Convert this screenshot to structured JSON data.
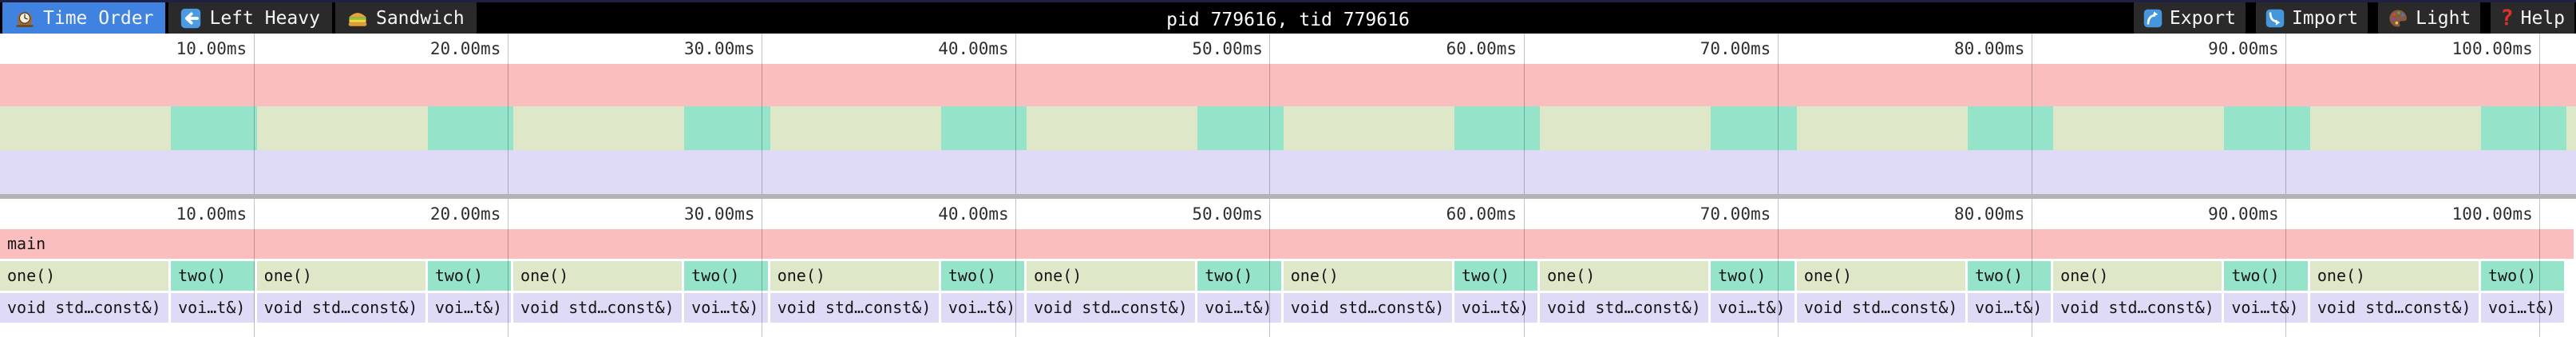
{
  "header": {
    "tabs": [
      {
        "label": "Time Order",
        "icon": "clock-icon",
        "active": true
      },
      {
        "label": "Left Heavy",
        "icon": "left-arrow-icon",
        "active": false
      },
      {
        "label": "Sandwich",
        "icon": "sandwich-icon",
        "active": false
      }
    ],
    "title": "pid 779616, tid 779616",
    "actions": [
      {
        "label": "Export",
        "icon": "export-icon"
      },
      {
        "label": "Import",
        "icon": "import-icon"
      },
      {
        "label": "Light",
        "icon": "palette-icon"
      },
      {
        "label": "Help",
        "icon": "help-icon"
      }
    ]
  },
  "colors": {
    "accent_blue": "#3f82e0",
    "topbar_bg": "#000000",
    "topbar_border": "#202045",
    "tab_bg": "#2a2a2a",
    "main_pink": "#fbbebe",
    "one_green": "#dee8c9",
    "two_teal": "#95e3c8",
    "lib_lavender": "#dfdbf7",
    "gridline": "rgba(0,0,0,0.24)",
    "minimap_border": "#b3b3b3"
  },
  "chart_data": {
    "type": "flamegraph",
    "time_unit": "ms",
    "viewport_ms": [
      0,
      101.42
    ],
    "ticks": [
      {
        "t": 10,
        "label": "10.00ms"
      },
      {
        "t": 20,
        "label": "20.00ms"
      },
      {
        "t": 30,
        "label": "30.00ms"
      },
      {
        "t": 40,
        "label": "40.00ms"
      },
      {
        "t": 50,
        "label": "50.00ms"
      },
      {
        "t": 60,
        "label": "60.00ms"
      },
      {
        "t": 70,
        "label": "70.00ms"
      },
      {
        "t": 80,
        "label": "80.00ms"
      },
      {
        "t": 90,
        "label": "90.00ms"
      },
      {
        "t": 100,
        "label": "100.00ms"
      }
    ],
    "rows": [
      {
        "name": "depth-0",
        "frames": [
          {
            "label": "main",
            "s": 0,
            "e": 101.42,
            "color": "#fbbebe"
          }
        ]
      },
      {
        "name": "depth-1",
        "frames": [
          {
            "label": "one()",
            "s": 0,
            "e": 6.73,
            "color": "#dee8c9"
          },
          {
            "label": "two()",
            "s": 6.73,
            "e": 10.11,
            "color": "#95e3c8"
          },
          {
            "label": "one()",
            "s": 10.11,
            "e": 16.84,
            "color": "#dee8c9"
          },
          {
            "label": "two()",
            "s": 16.84,
            "e": 20.21,
            "color": "#95e3c8"
          },
          {
            "label": "one()",
            "s": 20.21,
            "e": 26.94,
            "color": "#dee8c9"
          },
          {
            "label": "two()",
            "s": 26.94,
            "e": 30.32,
            "color": "#95e3c8"
          },
          {
            "label": "one()",
            "s": 30.32,
            "e": 37.05,
            "color": "#dee8c9"
          },
          {
            "label": "two()",
            "s": 37.05,
            "e": 40.42,
            "color": "#95e3c8"
          },
          {
            "label": "one()",
            "s": 40.42,
            "e": 47.15,
            "color": "#dee8c9"
          },
          {
            "label": "two()",
            "s": 47.15,
            "e": 50.53,
            "color": "#95e3c8"
          },
          {
            "label": "one()",
            "s": 50.53,
            "e": 57.26,
            "color": "#dee8c9"
          },
          {
            "label": "two()",
            "s": 57.26,
            "e": 60.63,
            "color": "#95e3c8"
          },
          {
            "label": "one()",
            "s": 60.63,
            "e": 67.36,
            "color": "#dee8c9"
          },
          {
            "label": "two()",
            "s": 67.36,
            "e": 70.74,
            "color": "#95e3c8"
          },
          {
            "label": "one()",
            "s": 70.74,
            "e": 77.47,
            "color": "#dee8c9"
          },
          {
            "label": "two()",
            "s": 77.47,
            "e": 80.84,
            "color": "#95e3c8"
          },
          {
            "label": "one()",
            "s": 80.84,
            "e": 87.57,
            "color": "#dee8c9"
          },
          {
            "label": "two()",
            "s": 87.57,
            "e": 90.95,
            "color": "#95e3c8"
          },
          {
            "label": "one()",
            "s": 90.95,
            "e": 97.68,
            "color": "#dee8c9"
          },
          {
            "label": "two()",
            "s": 97.68,
            "e": 101.05,
            "color": "#95e3c8"
          }
        ]
      },
      {
        "name": "depth-2",
        "frames": [
          {
            "label": "void std…const&)",
            "s": 0,
            "e": 6.73,
            "color": "#dfdbf7"
          },
          {
            "label": "voi…t&)",
            "s": 6.73,
            "e": 10.11,
            "color": "#dfdbf7"
          },
          {
            "label": "void std…const&)",
            "s": 10.11,
            "e": 16.84,
            "color": "#dfdbf7"
          },
          {
            "label": "voi…t&)",
            "s": 16.84,
            "e": 20.21,
            "color": "#dfdbf7"
          },
          {
            "label": "void std…const&)",
            "s": 20.21,
            "e": 26.94,
            "color": "#dfdbf7"
          },
          {
            "label": "voi…t&)",
            "s": 26.94,
            "e": 30.32,
            "color": "#dfdbf7"
          },
          {
            "label": "void std…const&)",
            "s": 30.32,
            "e": 37.05,
            "color": "#dfdbf7"
          },
          {
            "label": "voi…t&)",
            "s": 37.05,
            "e": 40.42,
            "color": "#dfdbf7"
          },
          {
            "label": "void std…const&)",
            "s": 40.42,
            "e": 47.15,
            "color": "#dfdbf7"
          },
          {
            "label": "voi…t&)",
            "s": 47.15,
            "e": 50.53,
            "color": "#dfdbf7"
          },
          {
            "label": "void std…const&)",
            "s": 50.53,
            "e": 57.26,
            "color": "#dfdbf7"
          },
          {
            "label": "voi…t&)",
            "s": 57.26,
            "e": 60.63,
            "color": "#dfdbf7"
          },
          {
            "label": "void std…const&)",
            "s": 60.63,
            "e": 67.36,
            "color": "#dfdbf7"
          },
          {
            "label": "voi…t&)",
            "s": 67.36,
            "e": 70.74,
            "color": "#dfdbf7"
          },
          {
            "label": "void std…const&)",
            "s": 70.74,
            "e": 77.47,
            "color": "#dfdbf7"
          },
          {
            "label": "voi…t&)",
            "s": 77.47,
            "e": 80.84,
            "color": "#dfdbf7"
          },
          {
            "label": "void std…const&)",
            "s": 80.84,
            "e": 87.57,
            "color": "#dfdbf7"
          },
          {
            "label": "voi…t&)",
            "s": 87.57,
            "e": 90.95,
            "color": "#dfdbf7"
          },
          {
            "label": "void std…const&)",
            "s": 90.95,
            "e": 97.68,
            "color": "#dfdbf7"
          },
          {
            "label": "voi…t&)",
            "s": 97.68,
            "e": 101.05,
            "color": "#dfdbf7"
          }
        ]
      }
    ],
    "minimap": {
      "bands": [
        {
          "bg": "#fbbebe",
          "height": 53,
          "blocks": []
        },
        {
          "bg": "#dee8c9",
          "height": 55,
          "blocks": [
            {
              "s": 6.73,
              "e": 10.11,
              "color": "#95e3c8"
            },
            {
              "s": 16.84,
              "e": 20.21,
              "color": "#95e3c8"
            },
            {
              "s": 26.94,
              "e": 30.32,
              "color": "#95e3c8"
            },
            {
              "s": 37.05,
              "e": 40.42,
              "color": "#95e3c8"
            },
            {
              "s": 47.15,
              "e": 50.53,
              "color": "#95e3c8"
            },
            {
              "s": 57.26,
              "e": 60.63,
              "color": "#95e3c8"
            },
            {
              "s": 67.36,
              "e": 70.74,
              "color": "#95e3c8"
            },
            {
              "s": 77.47,
              "e": 80.84,
              "color": "#95e3c8"
            },
            {
              "s": 87.57,
              "e": 90.95,
              "color": "#95e3c8"
            },
            {
              "s": 97.68,
              "e": 101.05,
              "color": "#95e3c8"
            }
          ]
        },
        {
          "bg": "#dfdbf7",
          "height": 55,
          "blocks": []
        }
      ]
    }
  }
}
